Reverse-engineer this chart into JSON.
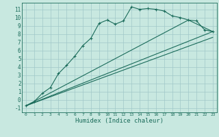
{
  "title": "",
  "xlabel": "Humidex (Indice chaleur)",
  "bg_color": "#c8e8e0",
  "grid_color": "#a0c8c8",
  "line_color": "#1a6b5a",
  "xlim": [
    -0.5,
    23.5
  ],
  "ylim": [
    -1.5,
    11.8
  ],
  "xticks": [
    0,
    1,
    2,
    3,
    4,
    5,
    6,
    7,
    8,
    9,
    10,
    11,
    12,
    13,
    14,
    15,
    16,
    17,
    18,
    19,
    20,
    21,
    22,
    23
  ],
  "yticks": [
    -1,
    0,
    1,
    2,
    3,
    4,
    5,
    6,
    7,
    8,
    9,
    10,
    11
  ],
  "main_series": {
    "x": [
      0,
      1,
      2,
      3,
      4,
      5,
      6,
      7,
      8,
      9,
      10,
      11,
      12,
      13,
      14,
      15,
      16,
      17,
      18,
      19,
      20,
      21,
      22,
      23
    ],
    "y": [
      -0.7,
      -0.2,
      0.8,
      1.5,
      3.2,
      4.2,
      5.3,
      6.6,
      7.5,
      9.3,
      9.7,
      9.2,
      9.6,
      11.3,
      11.0,
      11.1,
      11.0,
      10.8,
      10.2,
      10.0,
      9.7,
      9.6,
      8.5,
      8.3
    ]
  },
  "line2": {
    "x": [
      0,
      23
    ],
    "y": [
      -0.7,
      8.3
    ]
  },
  "line3": {
    "x": [
      0,
      23
    ],
    "y": [
      -0.7,
      7.6
    ]
  },
  "line4": {
    "x": [
      0,
      20,
      23
    ],
    "y": [
      -0.7,
      9.7,
      8.3
    ]
  }
}
